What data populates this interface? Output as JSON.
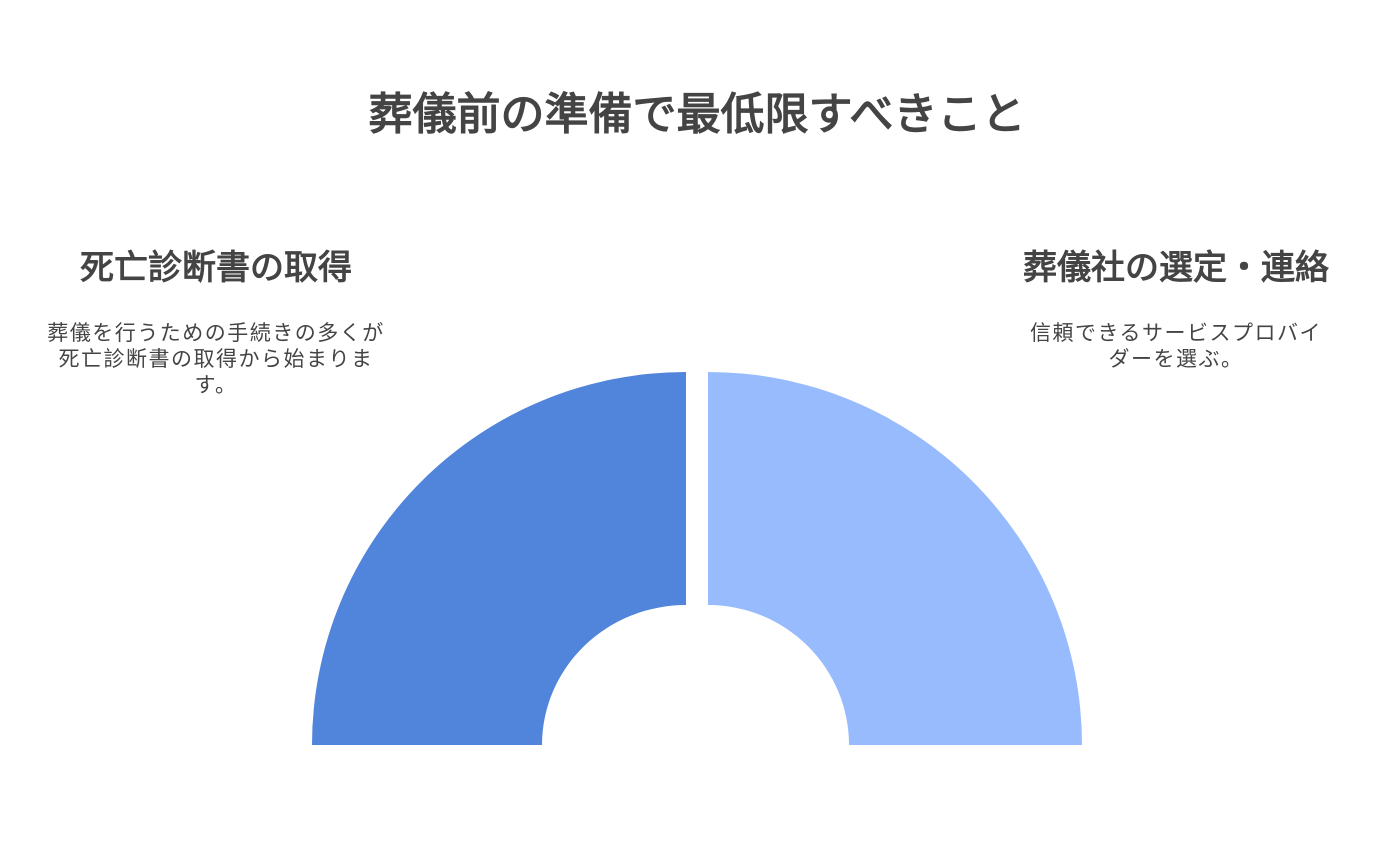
{
  "title": "葬儀前の準備で最低限すべきこと",
  "colors": {
    "left_segment": "#5184DB",
    "right_segment": "#97BBFD",
    "text": "#444444"
  },
  "segments": [
    {
      "heading": "死亡診断書の取得",
      "description": "葬儀を行うための手続きの多くが死亡診断書の取得から始まります。"
    },
    {
      "heading": "葬儀社の選定・連絡",
      "description": "信頼できるサービスプロバイダーを選ぶ。"
    }
  ]
}
